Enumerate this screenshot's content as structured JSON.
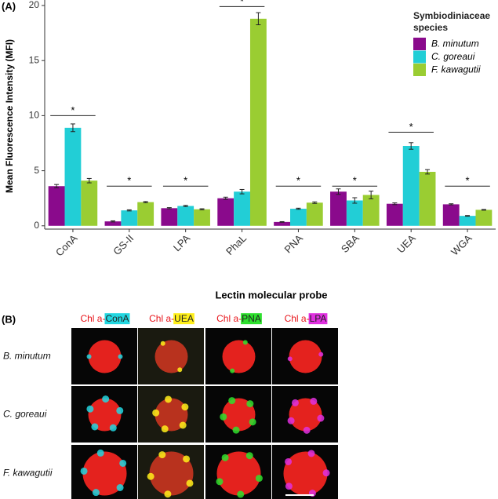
{
  "panel_a": {
    "chart_data": {
      "type": "bar",
      "panel_label": "(A)",
      "y_label": "Mean Fluorescence Intensity (MFI)",
      "x_label": "Lectin molecular probe",
      "categories": [
        "ConA",
        "GS-II",
        "LPA",
        "PhaL",
        "PNA",
        "SBA",
        "UEA",
        "WGA"
      ],
      "series": [
        {
          "name": "B. minutum",
          "color": "#8a0a8c",
          "values": [
            3.6,
            0.4,
            1.6,
            2.5,
            0.35,
            3.1,
            2.0,
            1.95
          ],
          "errors": [
            0.15,
            0.05,
            0.05,
            0.1,
            0.03,
            0.25,
            0.08,
            0.05
          ]
        },
        {
          "name": "C. goreaui",
          "color": "#22ced6",
          "values": [
            8.9,
            1.4,
            1.8,
            3.1,
            1.55,
            2.3,
            7.25,
            0.9
          ],
          "errors": [
            0.35,
            0.05,
            0.05,
            0.2,
            0.05,
            0.25,
            0.3,
            0.03
          ]
        },
        {
          "name": "F. kawagutii",
          "color": "#9acd32",
          "values": [
            4.1,
            2.15,
            1.5,
            18.8,
            2.1,
            2.8,
            4.9,
            1.45
          ],
          "errors": [
            0.2,
            0.05,
            0.05,
            0.55,
            0.07,
            0.35,
            0.2,
            0.03
          ]
        }
      ],
      "legend_title": "Symbiodiniaceae species",
      "ylim": [
        -0.3,
        20.5
      ],
      "yticks": [
        0,
        5,
        10,
        15,
        20
      ],
      "significance": [
        {
          "category": 0,
          "label": "*",
          "y": 10.0
        },
        {
          "category": 1,
          "label": "*",
          "y": 3.6
        },
        {
          "category": 2,
          "label": "*",
          "y": 3.6
        },
        {
          "category": 3,
          "label": "*",
          "y": 19.9
        },
        {
          "category": 4,
          "label": "*",
          "y": 3.6
        },
        {
          "category": 5,
          "label": "*",
          "y": 3.6
        },
        {
          "category": 6,
          "label": "*",
          "y": 8.5
        },
        {
          "category": 7,
          "label": "*",
          "y": 3.6
        }
      ]
    }
  },
  "panel_b": {
    "panel_label": "(B)",
    "columns": [
      {
        "label": "Chl a-",
        "probe": "ConA",
        "probe_color": "#22d6e0"
      },
      {
        "label": "Chl a-",
        "probe": "UEA",
        "probe_color": "#ffef1a"
      },
      {
        "label": "Chl a-",
        "probe": "PNA",
        "probe_color": "#2ee02e"
      },
      {
        "label": "Chl a-",
        "probe": "LPA",
        "probe_color": "#e030e0"
      }
    ],
    "rows": [
      "B. minutum",
      "C. goreaui",
      "F. kawagutii"
    ]
  }
}
